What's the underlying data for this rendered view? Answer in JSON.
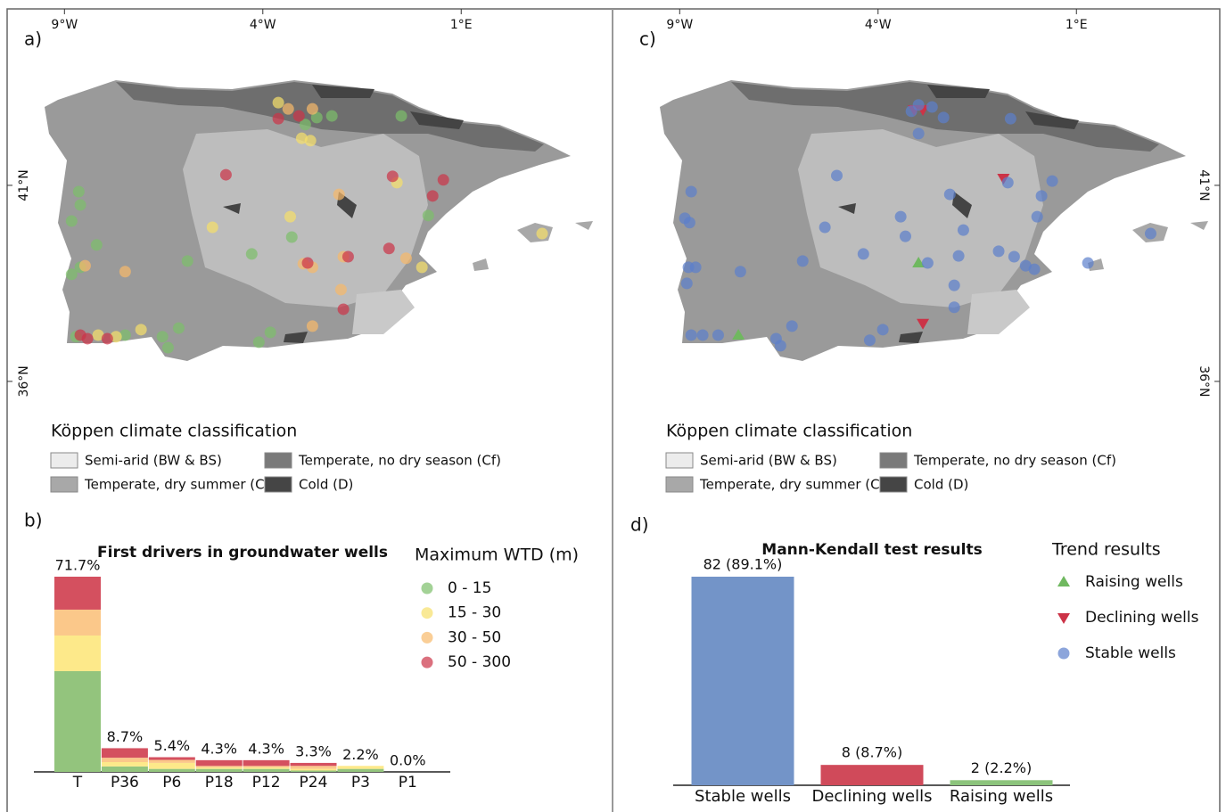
{
  "chart_data": [
    {
      "type": "map",
      "panel_label": "a)",
      "xlim": [
        -10.4,
        4.77
      ],
      "ylim": [
        35.27,
        45.5
      ],
      "xticks": [
        {
          "value": -9,
          "label": "9°W"
        },
        {
          "value": -4,
          "label": "4°W"
        },
        {
          "value": 1,
          "label": "1°E"
        }
      ],
      "yticks": [
        {
          "value": 36,
          "label": "36°N"
        },
        {
          "value": 41,
          "label": "41°N"
        }
      ],
      "climate_legend": {
        "title": "Köppen climate classification",
        "items": [
          {
            "label": "Semi-arid (BW & BS)",
            "color": "#ececec"
          },
          {
            "label": "Temperate, dry summer (Cs)",
            "color": "#a8a8a8"
          },
          {
            "label": "Temperate, no dry season (Cf)",
            "color": "#7a7a7a"
          },
          {
            "label": "Cold (D)",
            "color": "#454545"
          }
        ]
      },
      "legend_title": "Maximum WTD (m)",
      "series": [
        {
          "name": "0 - 15",
          "color": "#7cbf6a",
          "marker": "circle",
          "x": [
            -8.64,
            -8.6,
            -8.82,
            -8.19,
            -8.82,
            -8.6,
            -8.71,
            -7.47,
            -6.53,
            -6.39,
            -6.12,
            -5.9,
            -4.28,
            -3.81,
            -4.1,
            -3.27,
            -2.93,
            -2.64,
            -2.26,
            -0.51,
            0.17
          ],
          "y": [
            40.84,
            40.5,
            40.09,
            39.48,
            38.73,
            38.91,
            37.14,
            37.18,
            37.14,
            36.86,
            37.36,
            39.07,
            39.25,
            37.25,
            37.0,
            39.68,
            42.55,
            42.73,
            42.77,
            42.77,
            40.23
          ]
        },
        {
          "name": "15 - 30",
          "color": "#f7df6a",
          "marker": "circle",
          "x": [
            -3.61,
            -3.02,
            -2.8,
            -3.31,
            -5.27,
            -7.07,
            -8.15,
            0.01,
            -0.62,
            3.04,
            -7.7
          ],
          "y": [
            43.11,
            42.2,
            42.14,
            40.2,
            39.93,
            37.32,
            37.18,
            38.91,
            41.07,
            39.77,
            37.14
          ]
        },
        {
          "name": "30 - 50",
          "color": "#f8b96a",
          "marker": "circle",
          "x": [
            -3.36,
            -2.75,
            -7.47,
            -8.48,
            -1.97,
            -2.98,
            -2.75,
            -2.08,
            -2.03,
            -0.39,
            -2.75
          ],
          "y": [
            42.95,
            42.95,
            38.8,
            38.95,
            39.18,
            39.0,
            38.91,
            40.77,
            38.34,
            39.14,
            37.41
          ]
        },
        {
          "name": "50 - 300",
          "color": "#cc3347",
          "marker": "circle",
          "x": [
            -4.93,
            -3.61,
            -3.09,
            -0.73,
            0.55,
            0.28,
            -0.82,
            -2.87,
            -1.85,
            -1.97,
            -8.6,
            -8.42,
            -7.92
          ],
          "y": [
            41.27,
            42.7,
            42.77,
            41.23,
            41.14,
            40.73,
            39.39,
            39.02,
            39.18,
            37.84,
            37.18,
            37.09,
            37.09
          ]
        }
      ]
    },
    {
      "type": "bar",
      "stacked": true,
      "panel_label": "b)",
      "title": "First drivers in groundwater wells",
      "categories": [
        "T",
        "P36",
        "P6",
        "P18",
        "P12",
        "P24",
        "P3",
        "P1"
      ],
      "series": [
        {
          "color": "#93c47d",
          "values": [
            37.0,
            2.0,
            1.1,
            1.1,
            1.1,
            0.5,
            1.1,
            0
          ]
        },
        {
          "color": "#fde98a",
          "values": [
            13.1,
            1.6,
            2.2,
            0.5,
            0.5,
            0.6,
            1.1,
            0
          ]
        },
        {
          "color": "#fbc88a",
          "values": [
            9.5,
            1.6,
            1.1,
            0.6,
            0.6,
            1.1,
            0,
            0
          ]
        },
        {
          "color": "#d4505f",
          "values": [
            12.1,
            3.5,
            1.0,
            2.1,
            2.1,
            1.1,
            0,
            0
          ]
        }
      ],
      "totals": [
        71.7,
        8.7,
        5.4,
        4.3,
        4.3,
        3.3,
        2.2,
        0.0
      ],
      "total_labels": [
        "71.7%",
        "8.7%",
        "5.4%",
        "4.3%",
        "4.3%",
        "3.3%",
        "2.2%",
        "0.0%"
      ]
    },
    {
      "type": "map",
      "panel_label": "c)",
      "xlim": [
        -10.4,
        4.77
      ],
      "ylim": [
        35.27,
        45.5
      ],
      "xticks": [
        {
          "value": -9,
          "label": "9°W"
        },
        {
          "value": -4,
          "label": "4°W"
        },
        {
          "value": 1,
          "label": "1°E"
        }
      ],
      "yticks": [
        {
          "value": 36,
          "label": "36°N"
        },
        {
          "value": 41,
          "label": "41°N"
        }
      ],
      "climate_legend": {
        "title": "Köppen climate classification",
        "items": [
          {
            "label": "Semi-arid (BW & BS)",
            "color": "#ececec"
          },
          {
            "label": "Temperate, dry summer (Cs)",
            "color": "#a8a8a8"
          },
          {
            "label": "Temperate, no dry season (Cf)",
            "color": "#7a7a7a"
          },
          {
            "label": "Cold (D)",
            "color": "#454545"
          }
        ]
      },
      "legend_title": "Trend results",
      "series": [
        {
          "name": "Raising wells",
          "color": "#6fb85f",
          "marker": "triangle-up",
          "x": [
            -7.52,
            -2.98
          ],
          "y": [
            37.18,
            39.02
          ]
        },
        {
          "name": "Declining wells",
          "color": "#cc3347",
          "marker": "triangle-down",
          "x": [
            -3.09,
            -2.87,
            -0.84,
            -2.87
          ],
          "y": [
            42.93,
            42.93,
            41.18,
            37.48
          ]
        },
        {
          "name": "Stable wells",
          "color": "#5b7fcc",
          "marker": "circle",
          "x": [
            -8.71,
            -8.75,
            -8.87,
            -8.78,
            -8.82,
            -8.6,
            -8.71,
            -8.42,
            -8.03,
            -7.47,
            -6.57,
            -6.46,
            -6.17,
            -5.04,
            -5.34,
            -4.37,
            -4.21,
            -3.88,
            -5.9,
            -3.43,
            -3.31,
            -2.75,
            -2.35,
            -2.98,
            -2.08,
            -2.08,
            -1.97,
            -2.19,
            -1.85,
            -0.96,
            -0.73,
            0.39,
            0.12,
            0.01,
            -0.57,
            -0.28,
            -0.06,
            1.29,
            2.87,
            -3.16,
            -2.64,
            -0.66,
            -2.98
          ],
          "y": [
            40.84,
            40.05,
            40.16,
            38.91,
            38.5,
            38.91,
            37.18,
            37.18,
            37.18,
            38.8,
            37.09,
            36.91,
            37.41,
            41.25,
            39.93,
            39.25,
            37.05,
            37.32,
            39.07,
            40.2,
            39.7,
            39.02,
            42.73,
            42.32,
            38.45,
            37.89,
            39.2,
            40.77,
            39.86,
            39.32,
            41.07,
            41.11,
            40.73,
            40.2,
            39.18,
            38.95,
            38.86,
            39.02,
            39.77,
            42.89,
            43.0,
            42.7,
            43.05
          ]
        }
      ]
    },
    {
      "type": "bar",
      "panel_label": "d)",
      "title": "Mann-Kendall test results",
      "categories": [
        "Stable wells",
        "Declining wells",
        "Raising wells"
      ],
      "values": [
        82,
        8,
        2
      ],
      "value_labels": [
        "82 (89.1%)",
        "8 (8.7%)",
        "2 (2.2%)"
      ],
      "colors": [
        "#7394c8",
        "#d04a5a",
        "#8cc47c"
      ]
    }
  ]
}
